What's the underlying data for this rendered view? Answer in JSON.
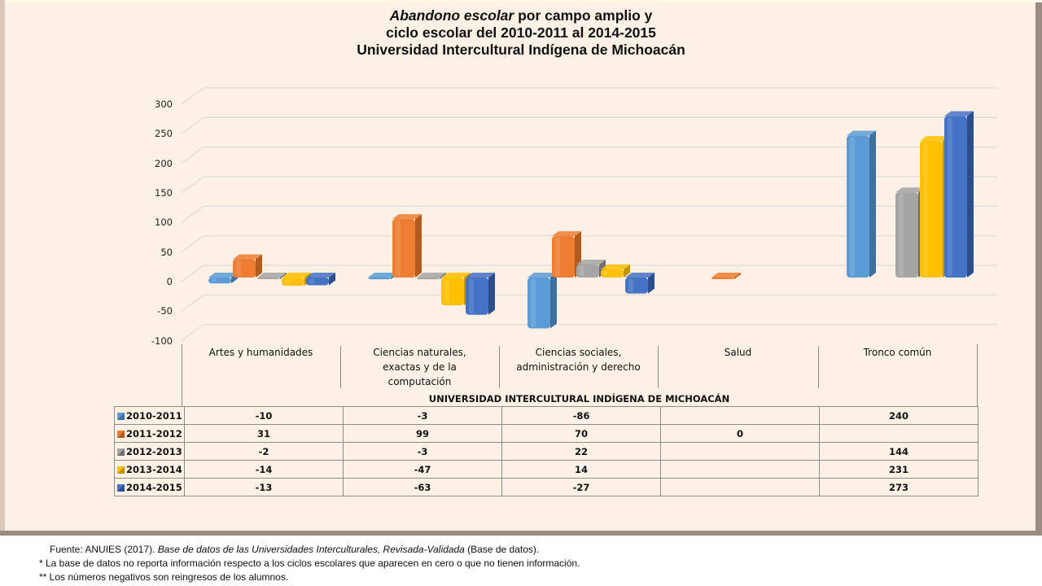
{
  "chart_data": {
    "type": "bar",
    "title_italic": "Abandono escolar",
    "title_line1_rest": " por campo amplio y",
    "title_line2": "ciclo escolar del 2010-2011 al 2014-2015",
    "title_line3": "Universidad Intercultural Indígena de Michoacán",
    "xlabel": "UNIVERSIDAD INTERCULTURAL INDÍGENA DE MICHOACÁN",
    "ylabel": "",
    "ylim": [
      -100,
      300
    ],
    "yticks": [
      "300",
      "250",
      "200",
      "150",
      "100",
      "50",
      "0",
      "-50",
      "-100"
    ],
    "ytick_values": [
      300,
      250,
      200,
      150,
      100,
      50,
      0,
      -50,
      -100
    ],
    "grid": true,
    "legend": "data-table",
    "categories": [
      "Artes y humanidades",
      "Ciencias naturales, exactas y de la computación",
      "Ciencias sociales, administración y derecho",
      "Salud",
      "Tronco común"
    ],
    "category_lines": [
      [
        "Artes y humanidades"
      ],
      [
        "Ciencias naturales,",
        "exactas y de la",
        "computación"
      ],
      [
        "Ciencias sociales,",
        "administración y derecho"
      ],
      [
        "Salud"
      ],
      [
        "Tronco común"
      ]
    ],
    "series": [
      {
        "name": "2010-2011",
        "color": "#5b9bd5",
        "dark": "#3f6f9c",
        "values": [
          -10,
          -3,
          -86,
          null,
          240
        ],
        "labels": [
          "-10",
          "-3",
          "-86",
          "",
          "240"
        ]
      },
      {
        "name": "2011-2012",
        "color": "#ed7d31",
        "dark": "#b35a1f",
        "values": [
          31,
          99,
          70,
          0,
          null
        ],
        "labels": [
          "31",
          "99",
          "70",
          "0",
          ""
        ]
      },
      {
        "name": "2012-2013",
        "color": "#a5a5a5",
        "dark": "#6f6f6f",
        "values": [
          -2,
          -3,
          22,
          null,
          144
        ],
        "labels": [
          "-2",
          "-3",
          "22",
          "",
          "144"
        ]
      },
      {
        "name": "2013-2014",
        "color": "#ffc000",
        "dark": "#c49300",
        "values": [
          -14,
          -47,
          14,
          null,
          231
        ],
        "labels": [
          "-14",
          "-47",
          "14",
          "",
          "231"
        ]
      },
      {
        "name": "2014-2015",
        "color": "#4472c4",
        "dark": "#2c4f8c",
        "values": [
          -13,
          -63,
          -27,
          null,
          273
        ],
        "labels": [
          "-13",
          "-63",
          "-27",
          "",
          "273"
        ]
      }
    ]
  },
  "notes": {
    "source_prefix": "Fuente: ANUIES  (2017). ",
    "source_italic": "Base de datos de las Universidades  Interculturales, Revisada-Validada",
    "source_suffix": "  (Base de datos).",
    "note1": "* La base de datos no reporta información respecto a los ciclos escolares que aparecen en cero o que no tienen información.",
    "note2": "** Los números negativos  son reingresos de los alumnos."
  }
}
